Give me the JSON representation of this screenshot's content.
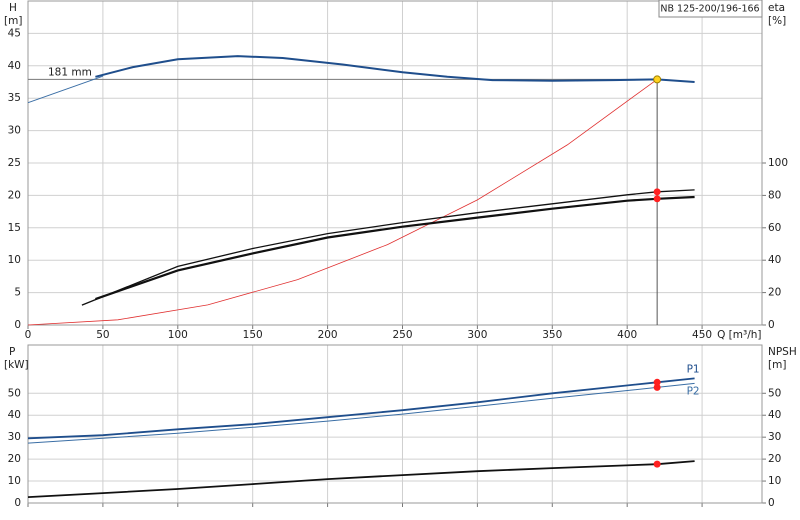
{
  "chart_data": [
    {
      "type": "line",
      "title": "NB 125-200/196-166",
      "ylabel": "H",
      "yunit": "[m]",
      "y2label": "eta",
      "y2unit": "[%]",
      "xlabel": "Q [m³/h]",
      "annotation": "181 mm",
      "grid": true,
      "xlim": [
        0,
        490
      ],
      "xticks": [
        0,
        50,
        100,
        150,
        200,
        250,
        300,
        350,
        400,
        450
      ],
      "ylim": [
        0,
        50
      ],
      "yticks": [
        0,
        5,
        10,
        15,
        20,
        25,
        30,
        35,
        40,
        45
      ],
      "y2lim": [
        0,
        200
      ],
      "y2ticks": [
        0,
        20,
        40,
        60,
        80,
        100
      ],
      "series": [
        {
          "x": [
            45,
            70,
            100,
            140,
            170,
            210,
            250,
            280,
            310,
            350,
            390,
            420,
            445
          ],
          "values": [
            38.3,
            39.8,
            41,
            41.5,
            41.2,
            40.2,
            39,
            38.3,
            37.8,
            37.7,
            37.8,
            37.9,
            37.5
          ],
          "color": "#1f4e8c",
          "width": 2,
          "axis": "y"
        },
        {
          "x": [
            0,
            50
          ],
          "values": [
            34.3,
            38.4
          ],
          "color": "#3a6ea5",
          "width": 1,
          "axis": "y"
        },
        {
          "x": [
            0,
            60,
            120,
            180,
            240,
            300,
            360,
            420
          ],
          "values": [
            0,
            0.8,
            3.1,
            7,
            12.4,
            19.3,
            27.8,
            37.9
          ],
          "color": "#e03030",
          "width": 0.8,
          "axis": "y"
        },
        {
          "x": [
            36,
            100,
            150,
            200,
            250,
            300,
            350,
            400,
            420,
            445
          ],
          "values": [
            12.3,
            36.2,
            47.2,
            56.4,
            63.2,
            69.3,
            74.8,
            80.4,
            82.2,
            83.4
          ],
          "color": "#111111",
          "width": 1.3,
          "axis": "y2"
        },
        {
          "x": [
            45,
            100,
            150,
            200,
            250,
            300,
            350,
            400,
            420,
            445
          ],
          "values": [
            16,
            33.7,
            44.2,
            54,
            60.7,
            66.3,
            71.8,
            76.7,
            77.9,
            79
          ],
          "color": "#111111",
          "width": 2.2,
          "axis": "y2"
        }
      ],
      "markers": [
        {
          "x": 420,
          "value": 37.9,
          "axis": "y",
          "color": "#ffd21f",
          "guide": true
        },
        {
          "x": 420,
          "value": 82.2,
          "axis": "y2",
          "color": "#ff2020"
        },
        {
          "x": 420,
          "value": 77.9,
          "axis": "y2",
          "color": "#ff2020"
        }
      ]
    },
    {
      "type": "line",
      "ylabel": "P",
      "yunit": "[kW]",
      "y2label": "NPSH",
      "y2unit": "[m]",
      "grid": true,
      "xlim": [
        0,
        490
      ],
      "xticks": [
        0,
        50,
        100,
        150,
        200,
        250,
        300,
        350,
        400,
        450
      ],
      "ylim": [
        0,
        72
      ],
      "yticks": [
        0,
        10,
        20,
        30,
        40,
        50
      ],
      "y2lim": [
        0,
        72
      ],
      "y2ticks": [
        0,
        10,
        20,
        30,
        40,
        50
      ],
      "series": [
        {
          "name": "P1",
          "x": [
            0,
            50,
            100,
            150,
            200,
            250,
            300,
            350,
            420,
            445
          ],
          "values": [
            29.5,
            30.9,
            33.6,
            35.9,
            39.1,
            42.3,
            45.9,
            50,
            55,
            56.8
          ],
          "color": "#1f4e8c",
          "width": 1.8,
          "axis": "y"
        },
        {
          "name": "P2",
          "x": [
            0,
            50,
            100,
            150,
            200,
            250,
            300,
            350,
            420,
            445
          ],
          "values": [
            27.3,
            29.5,
            31.8,
            34.5,
            37.3,
            40.5,
            44.1,
            47.7,
            52.7,
            54.5
          ],
          "color": "#3a6ea5",
          "width": 1,
          "axis": "y"
        },
        {
          "x": [
            0,
            50,
            100,
            150,
            200,
            250,
            300,
            350,
            420,
            445
          ],
          "values": [
            2.7,
            4.5,
            6.4,
            8.6,
            10.9,
            12.7,
            14.5,
            15.9,
            17.7,
            19.1
          ],
          "color": "#111111",
          "width": 1.8,
          "axis": "y2"
        }
      ],
      "markers": [
        {
          "x": 420,
          "value": 55,
          "axis": "y",
          "color": "#ff2020"
        },
        {
          "x": 420,
          "value": 52.7,
          "axis": "y",
          "color": "#ff2020"
        },
        {
          "x": 420,
          "value": 17.7,
          "axis": "y2",
          "color": "#ff2020"
        }
      ]
    }
  ]
}
